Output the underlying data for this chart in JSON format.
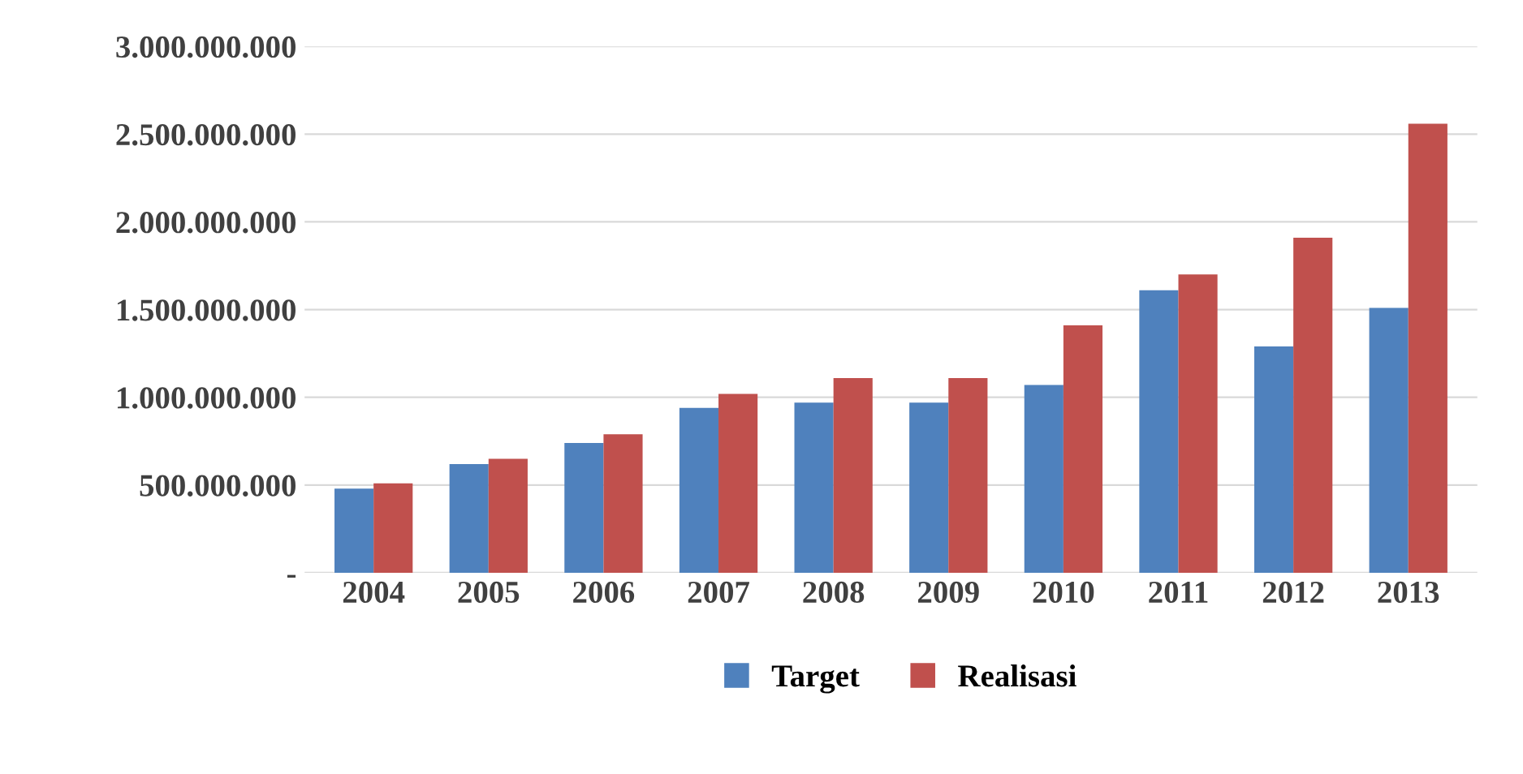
{
  "chart_data": {
    "type": "bar",
    "categories": [
      "2004",
      "2005",
      "2006",
      "2007",
      "2008",
      "2009",
      "2010",
      "2011",
      "2012",
      "2013"
    ],
    "series": [
      {
        "name": "Target",
        "color": "#4f81bd",
        "values": [
          480000000,
          620000000,
          740000000,
          940000000,
          970000000,
          970000000,
          1070000000,
          1610000000,
          1290000000,
          1510000000
        ]
      },
      {
        "name": "Realisasi",
        "color": "#c0504d",
        "values": [
          510000000,
          650000000,
          790000000,
          1020000000,
          1110000000,
          1110000000,
          1410000000,
          1700000000,
          1910000000,
          2560000000
        ]
      }
    ],
    "ylim": [
      0,
      3000000000
    ],
    "yticks": [
      {
        "value": 0,
        "label": "-"
      },
      {
        "value": 500000000,
        "label": "500.000.000"
      },
      {
        "value": 1000000000,
        "label": "1.000.000.000"
      },
      {
        "value": 1500000000,
        "label": "1.500.000.000"
      },
      {
        "value": 2000000000,
        "label": "2.000.000.000"
      },
      {
        "value": 2500000000,
        "label": "2.500.000.000"
      },
      {
        "value": 3000000000,
        "label": "3.000.000.000"
      }
    ],
    "grid": "y",
    "legend": "bottom"
  }
}
